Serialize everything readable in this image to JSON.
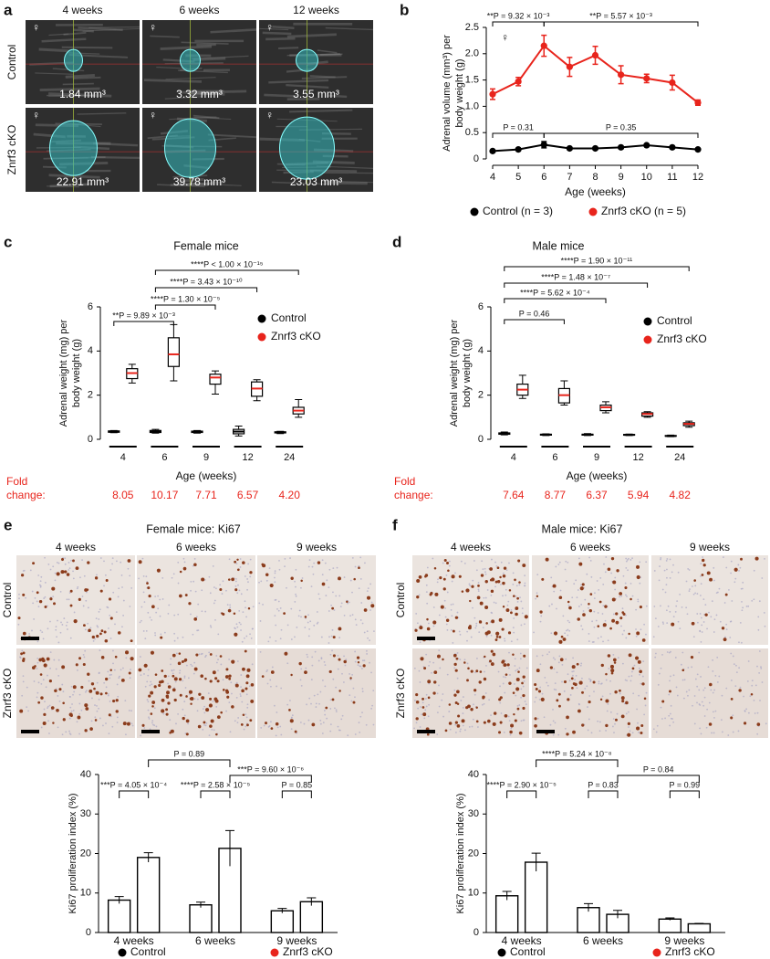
{
  "panel_letters": [
    "a",
    "b",
    "c",
    "d",
    "e",
    "f"
  ],
  "image_panels": [
    {
      "columns": [
        "4 weeks",
        "6 weeks",
        "12 weeks"
      ],
      "rows": [
        "Control",
        "Znrf3 cKO"
      ],
      "sex_symbol": "♀",
      "labels": [
        "1.84 mm³",
        "3.32 mm³",
        "3.55 mm³",
        "22.91 mm³",
        "39.78 mm³",
        "23.03 mm³"
      ]
    },
    {
      "title": "Female mice: Ki67",
      "columns": [
        "4 weeks",
        "6 weeks",
        "9 weeks"
      ],
      "rows": [
        "Control",
        "Znrf3 cKO"
      ]
    },
    {
      "title": "Male mice: Ki67",
      "columns": [
        "4 weeks",
        "6 weeks",
        "9 weeks"
      ],
      "rows": [
        "Control",
        "Znrf3 cKO"
      ]
    }
  ],
  "chart_data": [
    {
      "type": "line",
      "xlabel": "Age (weeks)",
      "ylabel": [
        "Adrenal volume (mm³) per",
        "body weight (g)"
      ],
      "x": [
        4,
        5,
        6,
        7,
        8,
        9,
        10,
        11,
        12
      ],
      "xlim": [
        4,
        12
      ],
      "xticks": [
        4,
        5,
        6,
        7,
        8,
        9,
        10,
        11,
        12
      ],
      "ylim": [
        0,
        2.5
      ],
      "yticks": [
        0,
        0.5,
        {
          "value": 1,
          "label": "1.0"
        },
        1.5,
        {
          "value": 2,
          "label": "2.0"
        },
        2.5
      ],
      "legend": "bottom",
      "series": [
        {
          "name": "Control (n = 3)",
          "color": "#000000",
          "values": [
            0.15,
            0.18,
            0.27,
            0.2,
            0.2,
            0.22,
            0.26,
            0.22,
            0.18
          ],
          "errors": [
            0.02,
            0.02,
            0.06,
            0.02,
            0.02,
            0.02,
            0.02,
            0.02,
            0.02
          ]
        },
        {
          "name": "Znrf3 cKO (n = 5)",
          "color": "#e8241c",
          "values": [
            1.23,
            1.47,
            2.15,
            1.75,
            1.97,
            1.6,
            1.53,
            1.45,
            1.07
          ],
          "errors": [
            0.1,
            0.08,
            0.2,
            0.18,
            0.17,
            0.17,
            0.08,
            0.14,
            0.05
          ]
        }
      ],
      "annotations": [
        "**P = 9.32 × 10⁻³",
        "**P = 5.57 × 10⁻³",
        "P = 0.31",
        "P = 0.35"
      ]
    },
    {
      "type": "box",
      "title": "Female mice",
      "xlabel": "Age (weeks)",
      "ylabel": [
        "Adrenal weight (mg) per",
        "body weight (g)"
      ],
      "categories": [
        "4",
        "6",
        "9",
        "12",
        "24"
      ],
      "ylim": [
        0,
        6
      ],
      "yticks": [
        0,
        2,
        4,
        6
      ],
      "legend": "upper right",
      "series": [
        {
          "name": "Control",
          "color": "#000000",
          "min": [
            0.3,
            0.28,
            0.28,
            0.15,
            0.26
          ],
          "q1": [
            0.32,
            0.31,
            0.31,
            0.25,
            0.29
          ],
          "median": [
            0.35,
            0.35,
            0.34,
            0.35,
            0.31
          ],
          "q3": [
            0.38,
            0.4,
            0.37,
            0.45,
            0.34
          ],
          "max": [
            0.4,
            0.45,
            0.4,
            0.6,
            0.36
          ]
        },
        {
          "name": "Znrf3 cKO",
          "color": "#e8241c",
          "min": [
            2.55,
            2.65,
            2.05,
            1.75,
            1.0
          ],
          "q1": [
            2.75,
            3.3,
            2.5,
            1.95,
            1.15
          ],
          "median": [
            3.0,
            3.85,
            2.8,
            2.3,
            1.3
          ],
          "q3": [
            3.2,
            4.6,
            2.95,
            2.6,
            1.45
          ],
          "max": [
            3.4,
            5.2,
            3.1,
            2.7,
            1.8
          ]
        }
      ],
      "annotations": [
        "**P = 9.89 × 10⁻³",
        "****P = 1.30 × 10⁻⁵",
        "****P = 3.43 × 10⁻¹⁰",
        "****P < 1.00 × 10⁻¹⁵"
      ],
      "fold_change": {
        "label": [
          "Fold",
          "change:"
        ],
        "values": [
          "8.05",
          "10.17",
          "7.71",
          "6.57",
          "4.20"
        ]
      }
    },
    {
      "type": "box",
      "title": "Male mice",
      "xlabel": "Age (weeks)",
      "ylabel": [
        "Adrenal weight (mg) per",
        "body weight (g)"
      ],
      "categories": [
        "4",
        "6",
        "9",
        "12",
        "24"
      ],
      "ylim": [
        0,
        6
      ],
      "yticks": [
        0,
        2,
        4,
        6
      ],
      "legend": "upper right",
      "series": [
        {
          "name": "Control",
          "color": "#000000",
          "min": [
            0.2,
            0.17,
            0.17,
            0.17,
            0.12
          ],
          "q1": [
            0.23,
            0.19,
            0.19,
            0.19,
            0.14
          ],
          "median": [
            0.26,
            0.21,
            0.21,
            0.2,
            0.15
          ],
          "q3": [
            0.29,
            0.23,
            0.23,
            0.22,
            0.17
          ],
          "max": [
            0.33,
            0.25,
            0.26,
            0.24,
            0.19
          ]
        },
        {
          "name": "Znrf3 cKO",
          "color": "#e8241c",
          "min": [
            1.85,
            1.55,
            1.2,
            1.0,
            0.55
          ],
          "q1": [
            2.0,
            1.65,
            1.3,
            1.05,
            0.62
          ],
          "median": [
            2.25,
            2.0,
            1.45,
            1.15,
            0.7
          ],
          "q3": [
            2.5,
            2.3,
            1.55,
            1.2,
            0.75
          ],
          "max": [
            2.9,
            2.65,
            1.7,
            1.25,
            0.82
          ]
        }
      ],
      "annotations": [
        "P = 0.46",
        "****P = 5.62 × 10⁻⁴",
        "****P = 1.48 × 10⁻⁷",
        "****P = 1.90 × 10⁻¹¹"
      ],
      "fold_change": {
        "label": [
          "Fold",
          "change:"
        ],
        "values": [
          "7.64",
          "8.77",
          "6.37",
          "5.94",
          "4.82"
        ]
      }
    },
    {
      "type": "bar",
      "ylabel": "Ki67 proliferation index (%)",
      "categories": [
        "4 weeks",
        "6 weeks",
        "9 weeks"
      ],
      "ylim": [
        0,
        40
      ],
      "yticks": [
        0,
        10,
        20,
        30,
        40
      ],
      "legend": "bottom",
      "series": [
        {
          "name": "Control",
          "color": "#000000",
          "values": [
            8.2,
            7.0,
            5.5
          ],
          "errors": [
            0.9,
            0.7,
            0.6
          ]
        },
        {
          "name": "Znrf3 cKO",
          "color": "#e8241c",
          "values": [
            19.0,
            21.3,
            7.8
          ],
          "errors": [
            1.2,
            4.5,
            1.0
          ]
        }
      ],
      "annotations": [
        "***P = 4.05 × 10⁻⁴",
        "****P = 2.58 × 10⁻⁵",
        "P = 0.85",
        "P = 0.89",
        "***P = 9.60 × 10⁻⁶"
      ]
    },
    {
      "type": "bar",
      "ylabel": "Ki67 proliferation index (%)",
      "categories": [
        "4 weeks",
        "6 weeks",
        "9 weeks"
      ],
      "ylim": [
        0,
        40
      ],
      "yticks": [
        0,
        10,
        20,
        30,
        40
      ],
      "legend": "bottom",
      "series": [
        {
          "name": "Control",
          "color": "#000000",
          "values": [
            9.3,
            6.3,
            3.4
          ],
          "errors": [
            1.1,
            1.0,
            0.3
          ]
        },
        {
          "name": "Znrf3 cKO",
          "color": "#e8241c",
          "values": [
            17.8,
            4.6,
            2.2
          ],
          "errors": [
            2.3,
            1.0,
            0.1
          ]
        }
      ],
      "annotations": [
        "****P = 2.90 × 10⁻⁵",
        "P = 0.83",
        "P = 0.99",
        "****P = 5.24 × 10⁻⁸",
        "P = 0.84"
      ]
    }
  ]
}
